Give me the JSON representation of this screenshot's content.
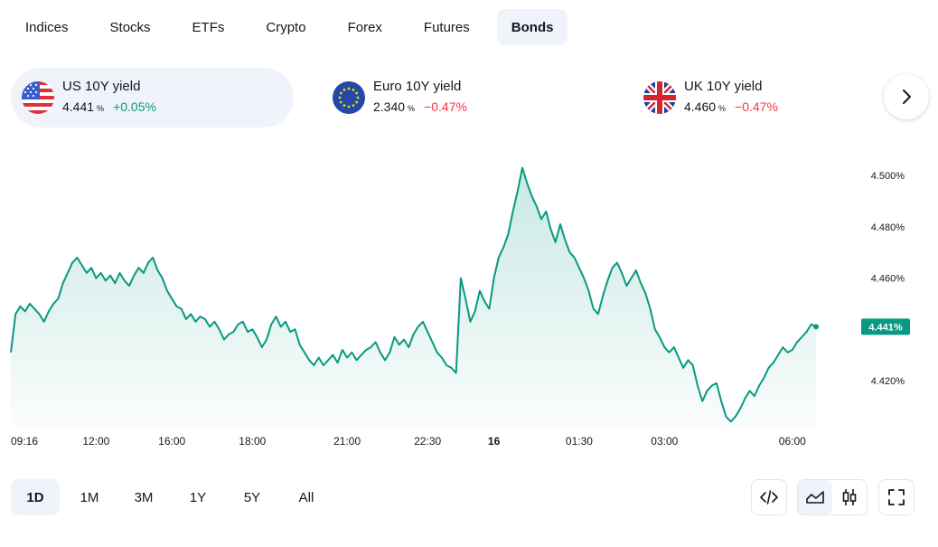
{
  "tabs": [
    {
      "label": "Indices",
      "active": false
    },
    {
      "label": "Stocks",
      "active": false
    },
    {
      "label": "ETFs",
      "active": false
    },
    {
      "label": "Crypto",
      "active": false
    },
    {
      "label": "Forex",
      "active": false
    },
    {
      "label": "Futures",
      "active": false
    },
    {
      "label": "Bonds",
      "active": true
    }
  ],
  "tickers": [
    {
      "name": "US 10Y yield",
      "value": "4.441",
      "unit": "%",
      "change": "+0.05%",
      "direction": "up",
      "flag": "us-flag-icon"
    },
    {
      "name": "Euro 10Y yield",
      "value": "2.340",
      "unit": "%",
      "change": "−0.47%",
      "direction": "down",
      "flag": "eu-flag-icon"
    },
    {
      "name": "UK 10Y yield",
      "value": "4.460",
      "unit": "%",
      "change": "−0.47%",
      "direction": "down",
      "flag": "uk-flag-icon"
    }
  ],
  "colors": {
    "up": "#089981",
    "down": "#f23645",
    "line": "#089981",
    "active_bg": "#f0f3fa"
  },
  "chart_data": {
    "type": "area",
    "series": [
      {
        "values": [
          4.431,
          4.446,
          4.449,
          4.447,
          4.45,
          4.448,
          4.446,
          4.443,
          4.447,
          4.45,
          4.452,
          4.458,
          4.462,
          4.466,
          4.468,
          4.465,
          4.462,
          4.464,
          4.46,
          4.462,
          4.459,
          4.461,
          4.458,
          4.462,
          4.459,
          4.457,
          4.461,
          4.464,
          4.462,
          4.466,
          4.468,
          4.463,
          4.46,
          4.455,
          4.452,
          4.449,
          4.448,
          4.444,
          4.446,
          4.443,
          4.445,
          4.444,
          4.441,
          4.443,
          4.44,
          4.436,
          4.438,
          4.439,
          4.442,
          4.443,
          4.439,
          4.44,
          4.437,
          4.433,
          4.436,
          4.442,
          4.445,
          4.441,
          4.443,
          4.439,
          4.44,
          4.434,
          4.431,
          4.428,
          4.426,
          4.429,
          4.426,
          4.428,
          4.43,
          4.427,
          4.432,
          4.429,
          4.431,
          4.428,
          4.43,
          4.432,
          4.433,
          4.435,
          4.431,
          4.428,
          4.431,
          4.437,
          4.434,
          4.436,
          4.433,
          4.438,
          4.441,
          4.443,
          4.439,
          4.435,
          4.431,
          4.429,
          4.426,
          4.425,
          4.423,
          4.46,
          4.452,
          4.443,
          4.447,
          4.455,
          4.451,
          4.448,
          4.46,
          4.468,
          4.472,
          4.477,
          4.486,
          4.494,
          4.503,
          4.497,
          4.492,
          4.488,
          4.483,
          4.486,
          4.479,
          4.474,
          4.481,
          4.475,
          4.47,
          4.468,
          4.464,
          4.46,
          4.455,
          4.448,
          4.446,
          4.453,
          4.459,
          4.464,
          4.466,
          4.462,
          4.457,
          4.46,
          4.463,
          4.458,
          4.454,
          4.448,
          4.44,
          4.437,
          4.433,
          4.431,
          4.433,
          4.429,
          4.425,
          4.428,
          4.426,
          4.418,
          4.412,
          4.416,
          4.418,
          4.419,
          4.412,
          4.406,
          4.404,
          4.406,
          4.409,
          4.413,
          4.416,
          4.414,
          4.418,
          4.421,
          4.425,
          4.427,
          4.43,
          4.433,
          4.431,
          4.432,
          4.435,
          4.437,
          4.439,
          4.442,
          4.441
        ]
      }
    ],
    "ylim": [
      4.402,
      4.505
    ],
    "y_ticks": [
      "4.500%",
      "4.480%",
      "4.460%",
      "4.420%"
    ],
    "y_tick_values": [
      4.5,
      4.48,
      4.46,
      4.42
    ],
    "x_ticks": [
      "09:16",
      "12:00",
      "16:00",
      "18:00",
      "21:00",
      "22:30",
      "16",
      "01:30",
      "03:00",
      "06:00"
    ],
    "x_tick_index": [
      0,
      18,
      34,
      51,
      71,
      88,
      102,
      120,
      138,
      165
    ],
    "x_tick_bold": [
      "16"
    ],
    "last_value_label": "4.441%",
    "last_value": 4.441,
    "grid": false,
    "legend": "none"
  },
  "ranges": [
    {
      "label": "1D",
      "active": true
    },
    {
      "label": "1M",
      "active": false
    },
    {
      "label": "3M",
      "active": false
    },
    {
      "label": "1Y",
      "active": false
    },
    {
      "label": "5Y",
      "active": false
    },
    {
      "label": "All",
      "active": false
    }
  ],
  "tools": {
    "embed_icon": "embed-code-icon",
    "line_chart_icon": "area-chart-icon",
    "candles_icon": "candlestick-icon",
    "fullscreen_icon": "fullscreen-icon"
  }
}
